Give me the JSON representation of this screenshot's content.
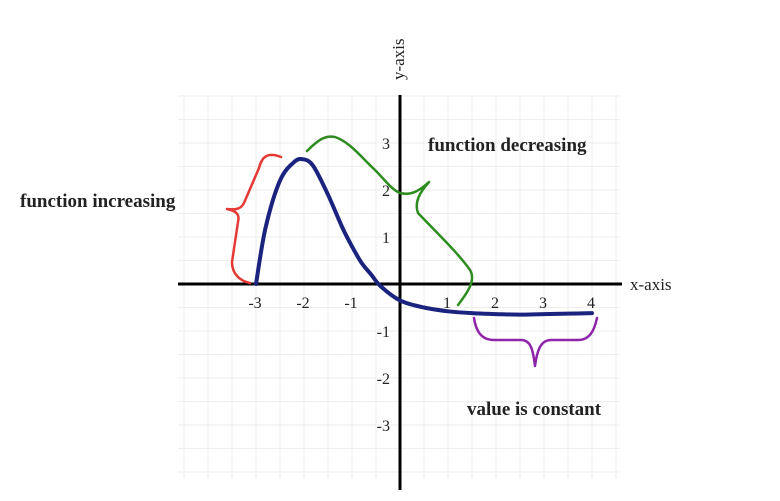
{
  "chart_data": {
    "type": "line",
    "title": "",
    "xlabel": "x-axis",
    "ylabel": "y-axis",
    "xlim": [
      -4.5,
      4.5
    ],
    "ylim": [
      -4,
      4
    ],
    "x_ticks": [
      -3,
      -2,
      -1,
      1,
      2,
      3,
      4
    ],
    "x_tick_labels": [
      "-3",
      "-2",
      "-1",
      "1",
      "2",
      "3",
      "4"
    ],
    "y_ticks": [
      3,
      2,
      1,
      -1,
      -2,
      -3
    ],
    "y_tick_labels": [
      "3",
      "2",
      "1",
      "-1",
      "-2",
      "-3"
    ],
    "grid": true,
    "series": [
      {
        "color": "#1a237e",
        "x": [
          -3,
          -2.8,
          -2.5,
          -2.2,
          -2,
          -1.8,
          -1.5,
          -1.2,
          -1,
          -0.8,
          -0.6,
          -0.4,
          0,
          0.5,
          1,
          1.5,
          2,
          2.5,
          3,
          3.5,
          4
        ],
        "y": [
          0,
          1.2,
          2.2,
          2.6,
          2.65,
          2.5,
          1.9,
          1.2,
          0.8,
          0.45,
          0.2,
          -0.05,
          -0.35,
          -0.5,
          -0.58,
          -0.62,
          -0.64,
          -0.65,
          -0.64,
          -0.63,
          -0.62
        ]
      }
    ],
    "annotations": [
      {
        "text": "function increasing",
        "color": "#e53935",
        "x_range": [
          -3,
          -2
        ]
      },
      {
        "text": "function decreasing",
        "color": "#2e8b1f",
        "x_range": [
          -2,
          1.5
        ]
      },
      {
        "text": "value is constant",
        "color": "#8e24aa",
        "x_range": [
          1.5,
          4
        ]
      }
    ]
  }
}
